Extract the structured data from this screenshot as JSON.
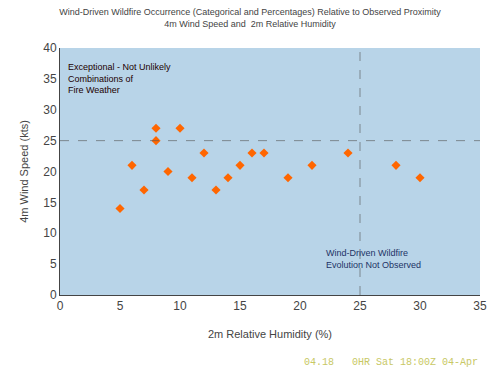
{
  "chart_data": {
    "type": "scatter",
    "title": "Wind-Driven Wildfire Occurrence (Categorical and Percentages) Relative to Observed Proximity\n4m Wind Speed and  2m Relative Humidity",
    "xlabel": "2m Relative Humidity (%)",
    "ylabel": "4m Wind Speed (kts)",
    "x": [
      5,
      7,
      9,
      11,
      13,
      15,
      17,
      19,
      21,
      8,
      10,
      12,
      14,
      16,
      6,
      8,
      24,
      28,
      30
    ],
    "values": [
      14,
      17,
      20,
      19,
      17,
      21,
      23,
      19,
      21,
      25,
      27,
      23,
      19,
      23,
      21,
      27,
      23,
      21,
      19
    ],
    "color": "#ff6600",
    "marker": "diamond",
    "xlim": [
      0,
      35
    ],
    "ylim": [
      0,
      40
    ],
    "xticks": [
      0,
      5,
      10,
      15,
      20,
      25,
      30,
      35
    ],
    "yticks": [
      0,
      5,
      10,
      15,
      20,
      25,
      30,
      35,
      40
    ],
    "reference_lines": {
      "x": [
        25
      ],
      "y": [
        25
      ]
    },
    "grid": false,
    "annotations": [
      {
        "text": "Exceptional - Not Unlikely\nCombinations of\nFire Weather",
        "x": 0.5,
        "y": 38,
        "color": "#220000"
      },
      {
        "text": "Wind-Driven Wildfire\nEvolution Not Observed",
        "x": 22,
        "y": 8,
        "color": "#223366"
      },
      {
        "text": "04.18   0HR Sat 18:00Z 04-Apr",
        "color": "#c8c864"
      }
    ]
  }
}
